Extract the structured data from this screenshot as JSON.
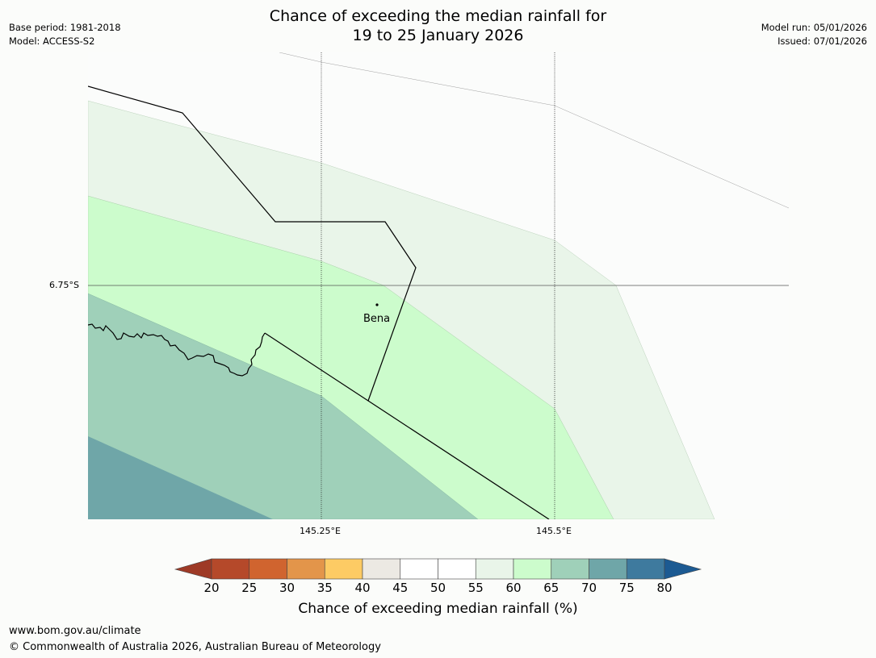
{
  "header": {
    "title_line1": "Chance of exceeding the median rainfall for",
    "title_line2": "19 to 25 January 2026",
    "base_period": "Base period: 1981-2018",
    "model": "Model: ACCESS-S2",
    "model_run": "Model run: 05/01/2026",
    "issued": "Issued: 07/01/2026"
  },
  "map": {
    "lat_label": "6.75°S",
    "lon_labels": [
      "145.25°E",
      "145.5°E"
    ],
    "place": "Bena"
  },
  "colorbar": {
    "ticks": [
      "20",
      "25",
      "30",
      "35",
      "40",
      "45",
      "50",
      "55",
      "60",
      "65",
      "70",
      "75",
      "80"
    ],
    "colors": [
      "#9e3a26",
      "#b5492a",
      "#d0642f",
      "#e3954a",
      "#fdcb64",
      "#ece9e3",
      "#ffffff",
      "#ffffff",
      "#e9f5e9",
      "#ccfccc",
      "#9fd0b9",
      "#6fa6a8",
      "#3e7a9e",
      "#1c5a92"
    ],
    "label": "Chance of exceeding median rainfall (%)"
  },
  "footer": {
    "url": "www.bom.gov.au/climate",
    "copyright": "© Commonwealth of Australia 2026, Australian Bureau of Meteorology"
  }
}
